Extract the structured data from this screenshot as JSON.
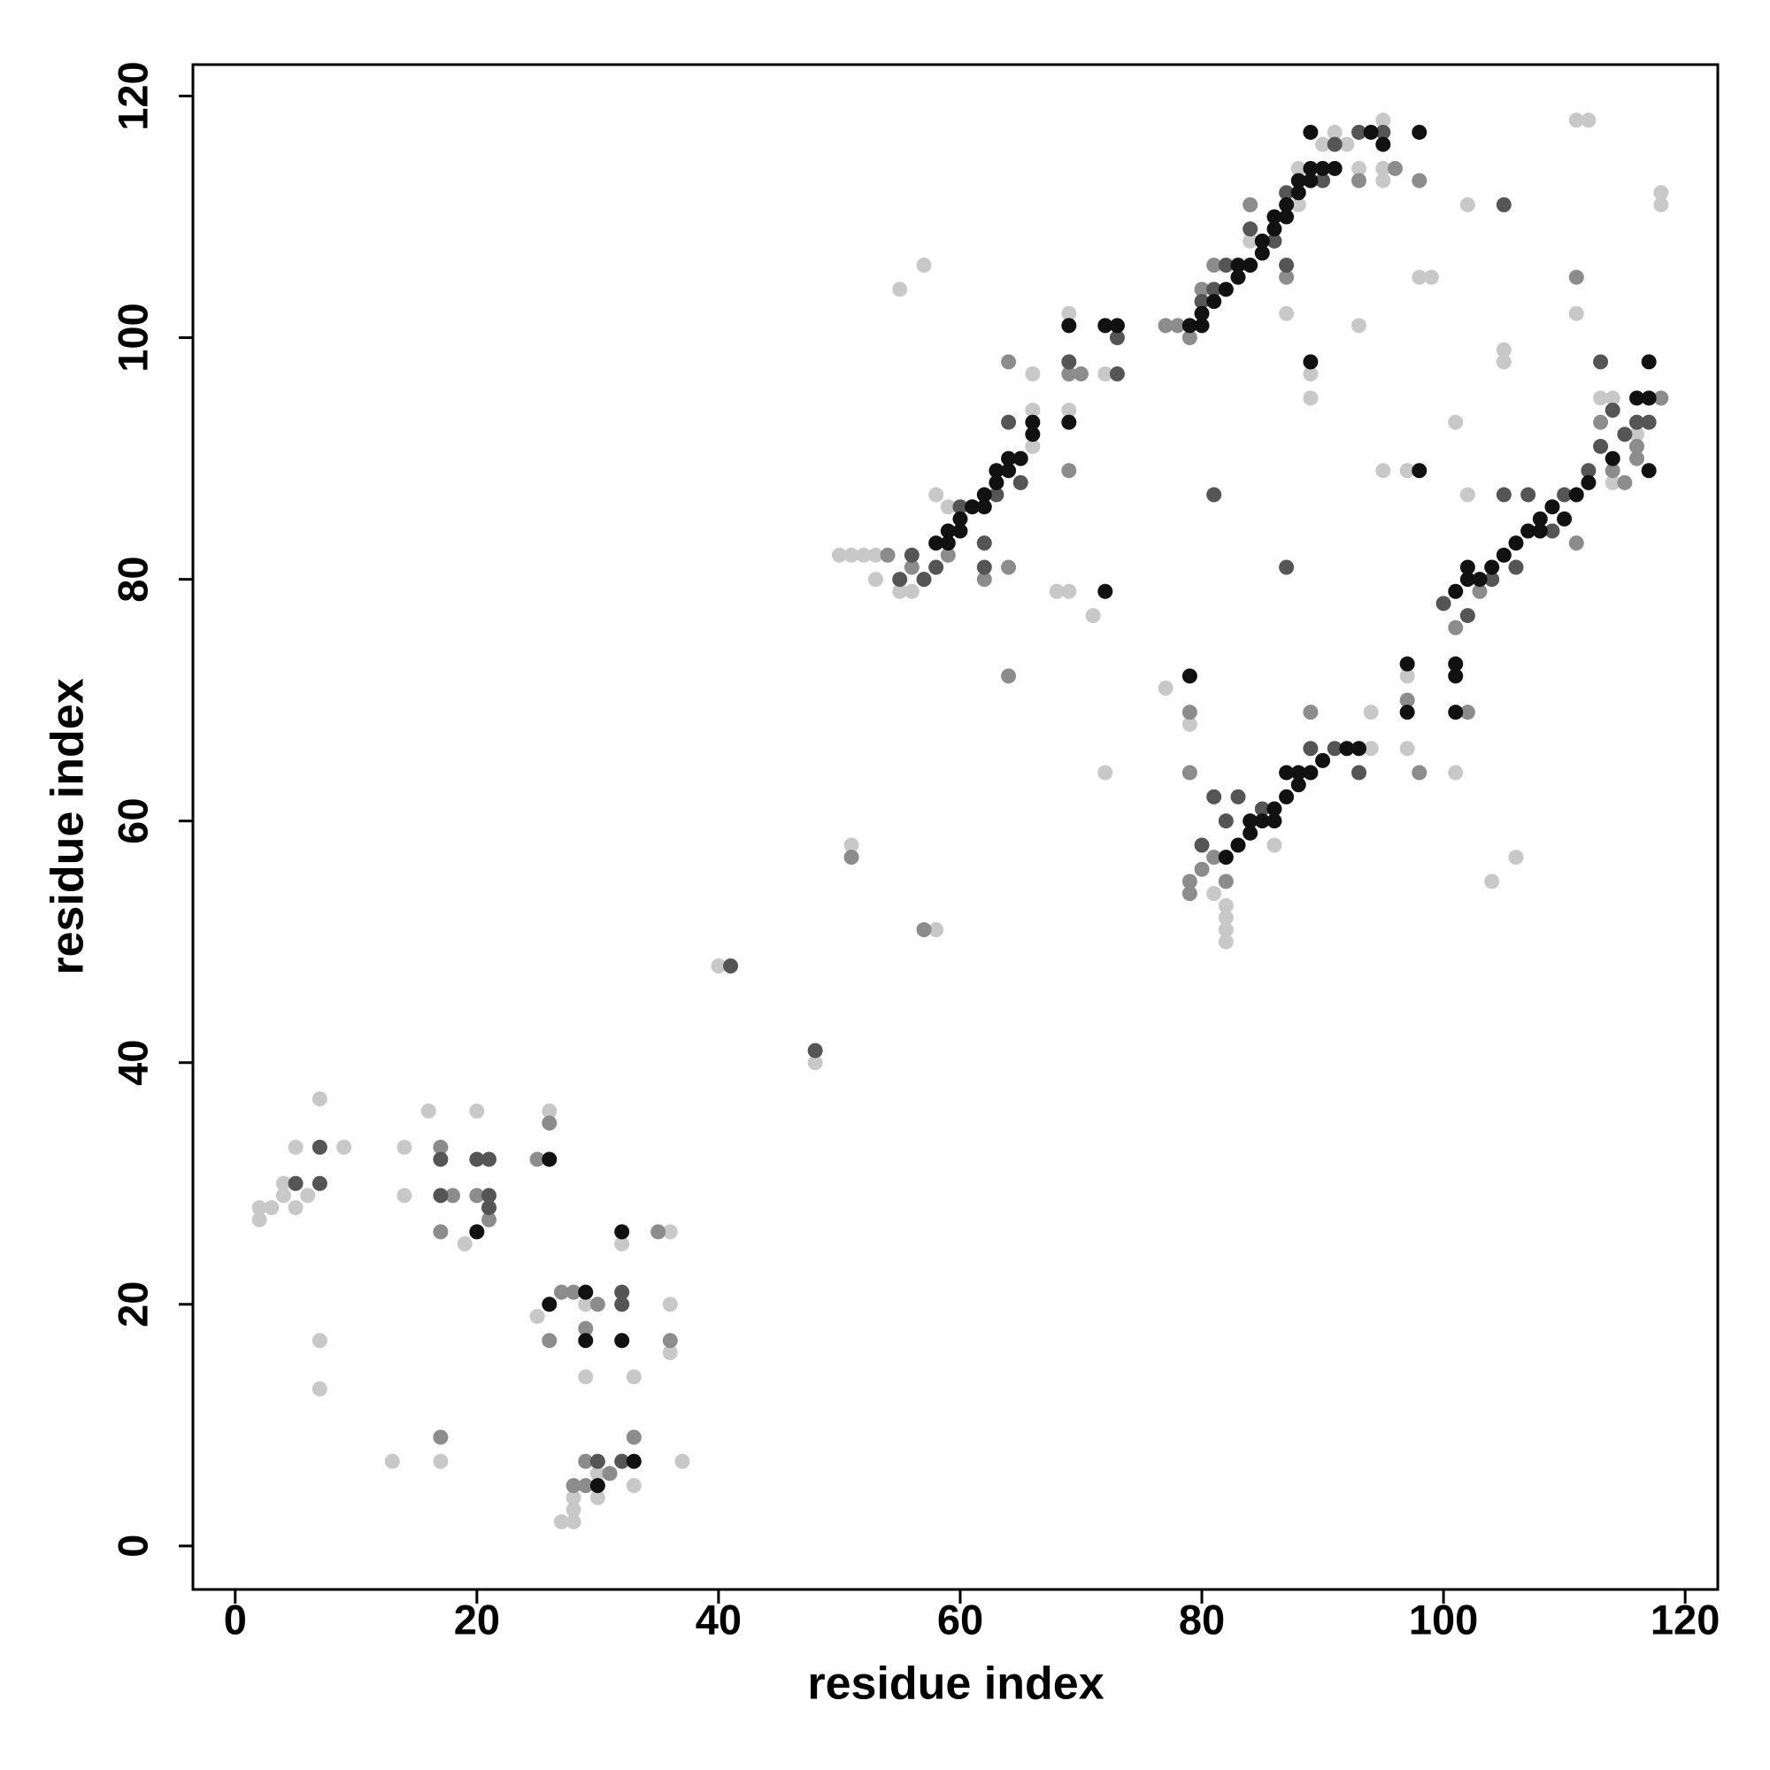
{
  "chart_data": {
    "type": "scatter",
    "xlabel": "residue index",
    "ylabel": "residue index",
    "xlim": [
      -3.5,
      122.7
    ],
    "ylim": [
      -3.6,
      122.6
    ],
    "xticks": [
      0,
      20,
      40,
      60,
      80,
      100,
      120
    ],
    "yticks": [
      0,
      20,
      40,
      60,
      80,
      100,
      120
    ],
    "series": [
      {
        "color": "#c8c8c8",
        "x": [
          2,
          2,
          3,
          4,
          4,
          5,
          5,
          6,
          7,
          7,
          7,
          9,
          13,
          14,
          14,
          16,
          17,
          19,
          20,
          25,
          26,
          27,
          28,
          28,
          28,
          29,
          29,
          30,
          30,
          32,
          33,
          33,
          36,
          36,
          36,
          37,
          40,
          48,
          50,
          51,
          51,
          52,
          53,
          53,
          55,
          55,
          56,
          57,
          58,
          58,
          59,
          66,
          66,
          66,
          68,
          69,
          69,
          69,
          71,
          72,
          72,
          77,
          79,
          80,
          82,
          82,
          82,
          82,
          81,
          84,
          86,
          87,
          88,
          88,
          89,
          89,
          90,
          91,
          92,
          93,
          93,
          94,
          94,
          95,
          95,
          95,
          95,
          97,
          97,
          97,
          98,
          99,
          101,
          101,
          102,
          102,
          104,
          105,
          105,
          106,
          111,
          112,
          111,
          113,
          114,
          116,
          118,
          118,
          114
        ],
        "values": [
          27,
          28,
          28,
          29,
          30,
          28,
          33,
          29,
          37,
          17,
          13,
          33,
          7,
          33,
          29,
          36,
          7,
          25,
          36,
          19,
          36,
          2,
          2,
          3,
          4,
          14,
          20,
          4,
          6,
          25,
          14,
          5,
          26,
          16,
          20,
          7,
          48,
          40,
          82,
          82,
          58,
          82,
          80,
          82,
          79,
          104,
          79,
          106,
          87,
          51,
          86,
          97,
          94,
          91,
          79,
          79,
          94,
          102,
          77,
          97,
          64,
          71,
          68,
          104,
          50,
          51,
          52,
          53,
          54,
          108,
          58,
          102,
          111,
          114,
          95,
          97,
          116,
          117,
          116,
          114,
          101,
          69,
          66,
          113,
          118,
          114,
          89,
          89,
          66,
          72,
          105,
          105,
          64,
          93,
          87,
          111,
          55,
          98,
          99,
          57,
          118,
          118,
          102,
          95,
          88,
          92,
          112,
          111,
          95
        ]
      },
      {
        "color": "#8c8c8c",
        "x": [
          17,
          18,
          20,
          21,
          17,
          26,
          27,
          28,
          29,
          30,
          26,
          28,
          29,
          31,
          33,
          35,
          36,
          17,
          29,
          25,
          64,
          64,
          62,
          59,
          56,
          54,
          57,
          51,
          69,
          69,
          70,
          87,
          98,
          96,
          93,
          84,
          79,
          78,
          80,
          81,
          79,
          79,
          80,
          81,
          82,
          79,
          79,
          89,
          97,
          98,
          102,
          101,
          103,
          111,
          111,
          113,
          114,
          115,
          116,
          118,
          116,
          77,
          64
        ],
        "values": [
          26,
          29,
          29,
          27,
          33,
          35,
          21,
          21,
          18,
          20,
          17,
          5,
          7,
          6,
          9,
          26,
          17,
          9,
          5,
          32,
          98,
          81,
          80,
          82,
          81,
          82,
          51,
          57,
          89,
          97,
          97,
          105,
          113,
          114,
          113,
          111,
          100,
          101,
          104,
          106,
          55,
          54,
          56,
          57,
          55,
          64,
          69,
          69,
          70,
          64,
          69,
          76,
          79,
          83,
          105,
          93,
          89,
          88,
          91,
          95,
          90,
          101,
          72
        ]
      },
      {
        "color": "#555555",
        "x": [
          7,
          5,
          7,
          17,
          20,
          21,
          21,
          17,
          21,
          32,
          32,
          32,
          30,
          48,
          41,
          62,
          63,
          62,
          58,
          57,
          55,
          56,
          60,
          65,
          64,
          69,
          73,
          73,
          80,
          81,
          82,
          84,
          86,
          87,
          87,
          90,
          91,
          93,
          95,
          81,
          82,
          80,
          83,
          85,
          89,
          91,
          93,
          81,
          87,
          105,
          107,
          104,
          106,
          109,
          110,
          112,
          113,
          114,
          116,
          117,
          100,
          102,
          115,
          113,
          105
        ],
        "values": [
          33,
          30,
          30,
          32,
          32,
          32,
          29,
          29,
          28,
          21,
          20,
          7,
          7,
          41,
          48,
          83,
          87,
          81,
          81,
          80,
          80,
          82,
          86,
          88,
          93,
          98,
          100,
          97,
          103,
          104,
          106,
          109,
          108,
          106,
          112,
          113,
          116,
          117,
          117,
          62,
          60,
          58,
          62,
          61,
          66,
          66,
          64,
          87,
          81,
          87,
          87,
          80,
          81,
          84,
          87,
          89,
          91,
          94,
          93,
          93,
          78,
          77,
          92,
          98,
          111
        ]
      },
      {
        "color": "#111111",
        "x": [
          26,
          20,
          32,
          26,
          29,
          29,
          32,
          30,
          33,
          58,
          59,
          60,
          61,
          62,
          63,
          64,
          64,
          65,
          66,
          66,
          60,
          59,
          62,
          63,
          79,
          80,
          80,
          81,
          82,
          83,
          84,
          85,
          86,
          86,
          87,
          88,
          89,
          89,
          90,
          91,
          89,
          94,
          95,
          87,
          85,
          83,
          82,
          83,
          84,
          85,
          86,
          87,
          88,
          88,
          89,
          90,
          92,
          93,
          86,
          84,
          87,
          101,
          102,
          103,
          104,
          105,
          106,
          107,
          108,
          109,
          110,
          111,
          112,
          114,
          116,
          117,
          102,
          108,
          117,
          117,
          69,
          69,
          72,
          73,
          72,
          89,
          98,
          98,
          79,
          101,
          101,
          101,
          97,
          97,
          88
        ],
        "values": [
          32,
          26,
          26,
          20,
          21,
          17,
          17,
          5,
          7,
          83,
          84,
          85,
          86,
          87,
          88,
          89,
          90,
          90,
          92,
          93,
          84,
          83,
          86,
          89,
          101,
          101,
          102,
          103,
          104,
          105,
          106,
          107,
          109,
          110,
          111,
          112,
          113,
          114,
          114,
          114,
          117,
          117,
          116,
          110,
          108,
          106,
          57,
          58,
          60,
          60,
          61,
          62,
          63,
          64,
          64,
          65,
          66,
          66,
          60,
          59,
          64,
          79,
          80,
          80,
          81,
          82,
          83,
          84,
          85,
          86,
          85,
          87,
          88,
          90,
          95,
          95,
          81,
          84,
          98,
          89,
          101,
          93,
          101,
          101,
          79,
          98,
          89,
          117,
          72,
          73,
          72,
          69,
          73,
          69,
          113
        ]
      }
    ]
  }
}
